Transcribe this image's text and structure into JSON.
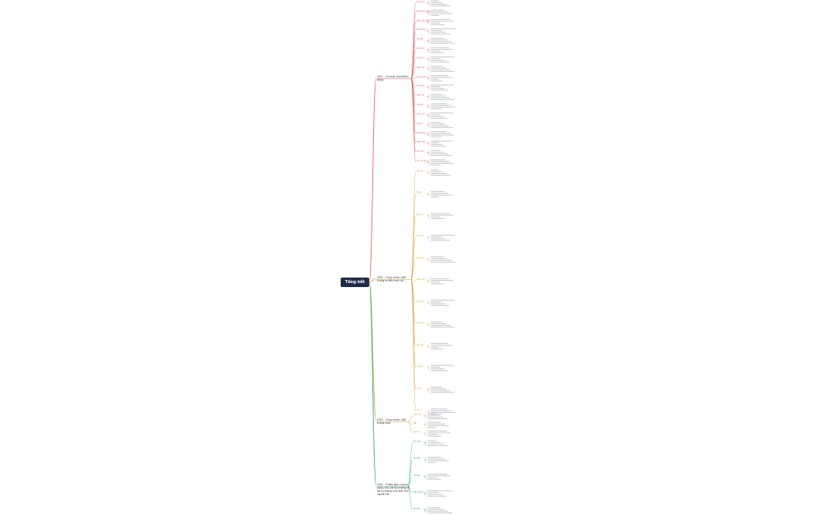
{
  "root": {
    "label": "Tổng kết T11"
  },
  "colors": {
    "b1": "#e05a5a",
    "b2": "#d9a030",
    "b3": "#c9a233",
    "b4": "#2aa876",
    "root": "#1e2a4a"
  },
  "branches": [
    {
      "id": "b1",
      "label": "CĐ1 - Chi tiết nhỏ điểm rộng",
      "items": [
        "Nội dung",
        "Mô tả đối tượng",
        "Nhân vật chính",
        "Tình huống",
        "Chi tiết",
        "Hình ảnh",
        "Thông tin",
        "Cảnh vật",
        "Không gian",
        "Thời gian",
        "Cảm xúc",
        "Sự kiện",
        "Hình ảnh",
        "Số liệu",
        "Hoạt động",
        "Nhận định",
        "Bối cảnh",
        "Câu chuyện"
      ]
    },
    {
      "id": "b2",
      "label": "CĐ2 - Chụp chân viết trang muôn hình vẻ",
      "items": [
        "Tên bài",
        "Mô tả",
        "Bố cục",
        "Cấu trúc",
        "Phân tích",
        "Nhận xét",
        "Câu mở",
        "Thân bài",
        "Kết luận",
        "Ý nghĩa",
        "Ví dụ",
        "Lưu ý"
      ]
    },
    {
      "id": "b3",
      "label": "CĐ3 - Chụp chân viết trang hoa",
      "items": [
        "Hiểu khái",
        "Mẫu",
        "Ghi nhớ"
      ]
    },
    {
      "id": "b4",
      "label": "CĐ4 - Thiên đạo nhanh công cửu để tự khẳng đi lối tư trọng cho bản lĩnh người trẻ",
      "items": [
        "Mục tiêu",
        "Kỹ năng",
        "Thái độ",
        "Hành động",
        "Kết quả"
      ]
    }
  ]
}
